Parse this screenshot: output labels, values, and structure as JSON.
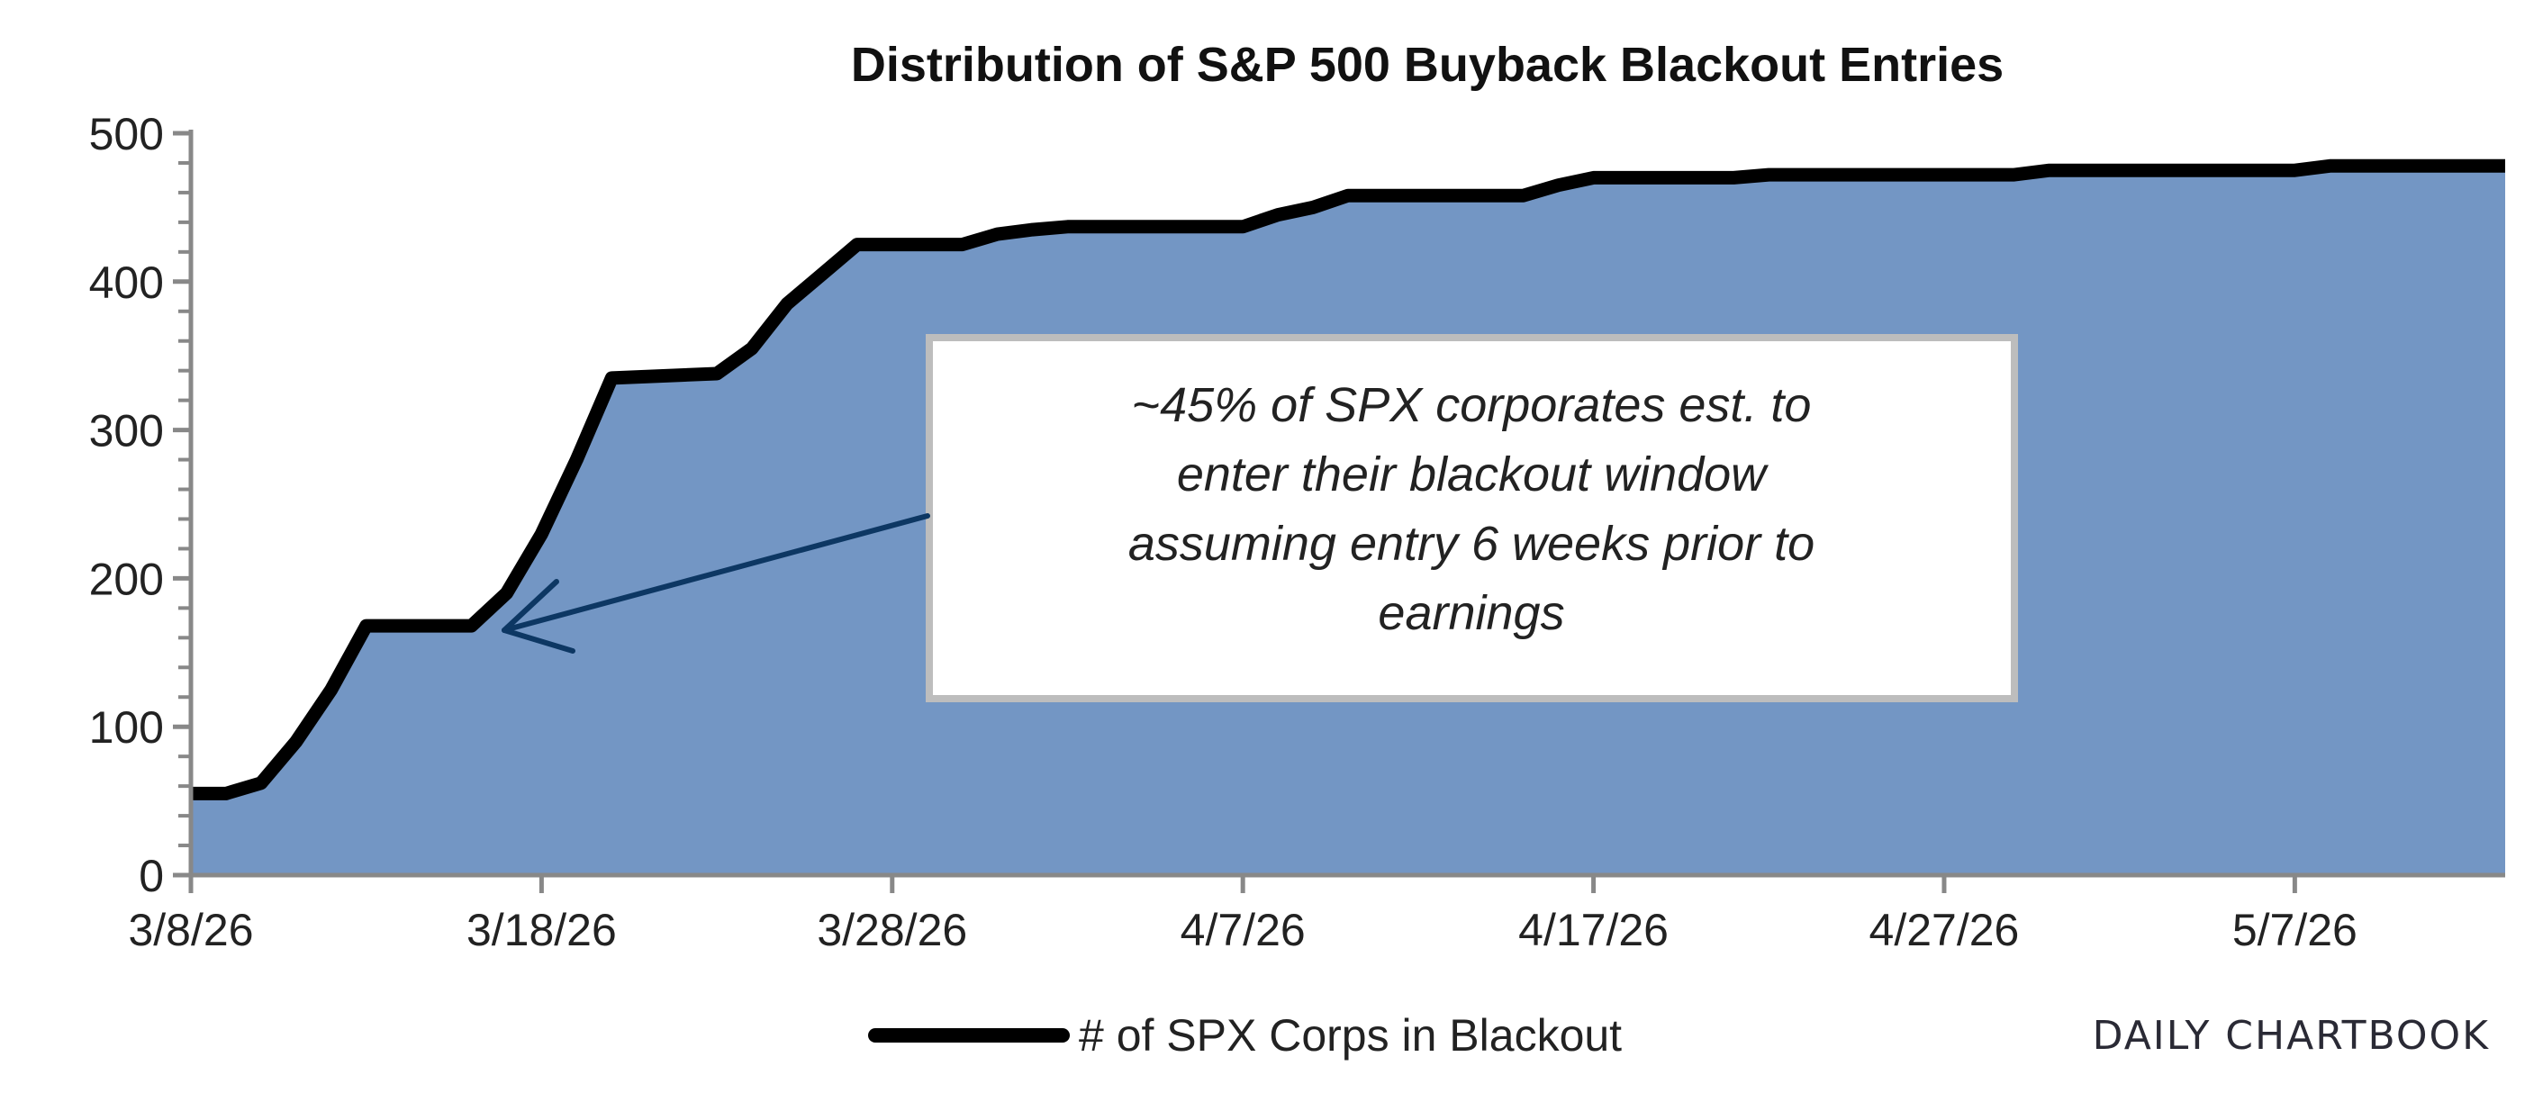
{
  "chart_data": {
    "type": "area",
    "title": "Distribution of S&P 500 Buyback Blackout Entries",
    "xlabel": "",
    "ylabel": "",
    "ylim": [
      0,
      500
    ],
    "yticks": [
      0,
      100,
      200,
      300,
      400,
      500
    ],
    "xtick_labels": [
      "3/8/26",
      "3/18/26",
      "3/28/26",
      "4/7/26",
      "4/17/26",
      "4/27/26",
      "5/7/26"
    ],
    "grid": false,
    "legend_position": "bottom",
    "colors": {
      "fill": "#7396c4",
      "line": "#000000",
      "axis": "#888888",
      "arrow": "#0d3763",
      "note_border": "#bdbdbd"
    },
    "x": [
      "3/8/26",
      "3/9/26",
      "3/10/26",
      "3/11/26",
      "3/12/26",
      "3/13/26",
      "3/14/26",
      "3/15/26",
      "3/16/26",
      "3/17/26",
      "3/18/26",
      "3/19/26",
      "3/20/26",
      "3/21/26",
      "3/22/26",
      "3/23/26",
      "3/24/26",
      "3/25/26",
      "3/26/26",
      "3/27/26",
      "3/28/26",
      "3/29/26",
      "3/30/26",
      "3/31/26",
      "4/1/26",
      "4/2/26",
      "4/3/26",
      "4/4/26",
      "4/5/26",
      "4/6/26",
      "4/7/26",
      "4/8/26",
      "4/9/26",
      "4/10/26",
      "4/11/26",
      "4/12/26",
      "4/13/26",
      "4/14/26",
      "4/15/26",
      "4/16/26",
      "4/17/26",
      "4/18/26",
      "4/19/26",
      "4/20/26",
      "4/21/26",
      "4/22/26",
      "4/23/26",
      "4/24/26",
      "4/25/26",
      "4/26/26",
      "4/27/26",
      "4/28/26",
      "4/29/26",
      "4/30/26",
      "5/1/26",
      "5/2/26",
      "5/3/26",
      "5/4/26",
      "5/5/26",
      "5/6/26",
      "5/7/26",
      "5/8/26",
      "5/9/26",
      "5/10/26",
      "5/11/26",
      "5/12/26",
      "5/13/26"
    ],
    "series": [
      {
        "name": "# of SPX Corps in Blackout",
        "values": [
          55,
          55,
          62,
          90,
          125,
          168,
          168,
          168,
          168,
          190,
          230,
          280,
          335,
          336,
          337,
          338,
          355,
          385,
          405,
          425,
          425,
          425,
          425,
          432,
          435,
          437,
          437,
          437,
          437,
          437,
          437,
          445,
          450,
          458,
          458,
          458,
          458,
          458,
          458,
          465,
          470,
          470,
          470,
          470,
          470,
          472,
          472,
          472,
          472,
          472,
          472,
          472,
          472,
          475,
          475,
          475,
          475,
          475,
          475,
          475,
          475,
          478,
          478,
          478,
          478,
          478,
          478
        ]
      }
    ],
    "annotation": {
      "lines": [
        "~45% of SPX corporates est. to",
        "enter their blackout window",
        "assuming entry 6 weeks prior to",
        "earnings"
      ],
      "points_to": "3/16/26"
    }
  },
  "watermark": "DAILY CHARTBOOK"
}
